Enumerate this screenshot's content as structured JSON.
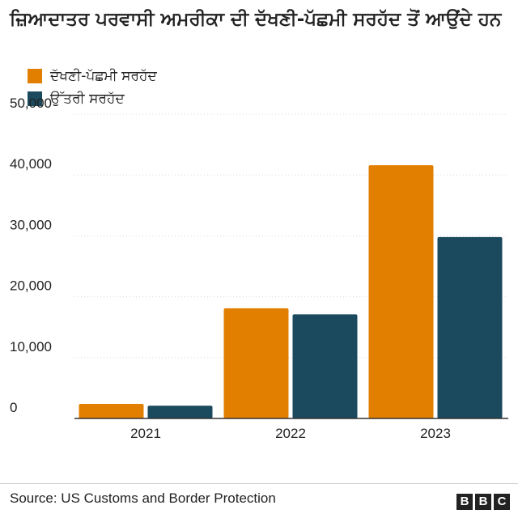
{
  "title": "ਜ਼ਿਆਦਾਤਰ ਪਰਵਾਸੀ ਅਮਰੀਕਾ ਦੀ ਦੱਖਣੀ-ਪੱਛਮੀ ਸਰਹੱਦ ਤੋਂ ਆਉਂਦੇ ਹਨ",
  "source": "Source: US Customs and Border Protection",
  "logo": {
    "letters": [
      "B",
      "B",
      "C"
    ]
  },
  "colors": {
    "southwest": "#e37f00",
    "northern": "#1b4a5e",
    "grid": "#d9d9d9",
    "axis": "#333333"
  },
  "chart_data": {
    "type": "bar",
    "categories": [
      "2021",
      "2022",
      "2023"
    ],
    "series": [
      {
        "name": "ਦੱਖਣੀ-ਪੱਛਮੀ ਸਰਹੱਦ",
        "values": [
          2400,
          18100,
          41600
        ]
      },
      {
        "name": "ਉੱਤਰੀ ਸਰਹੱਦ",
        "values": [
          2100,
          17100,
          29800
        ]
      }
    ],
    "yticks": [
      "0",
      "10,000",
      "20,000",
      "30,000",
      "40,000",
      "50,000"
    ],
    "ylim": [
      0,
      50000
    ],
    "grid": true,
    "legend_position": "top-left"
  }
}
